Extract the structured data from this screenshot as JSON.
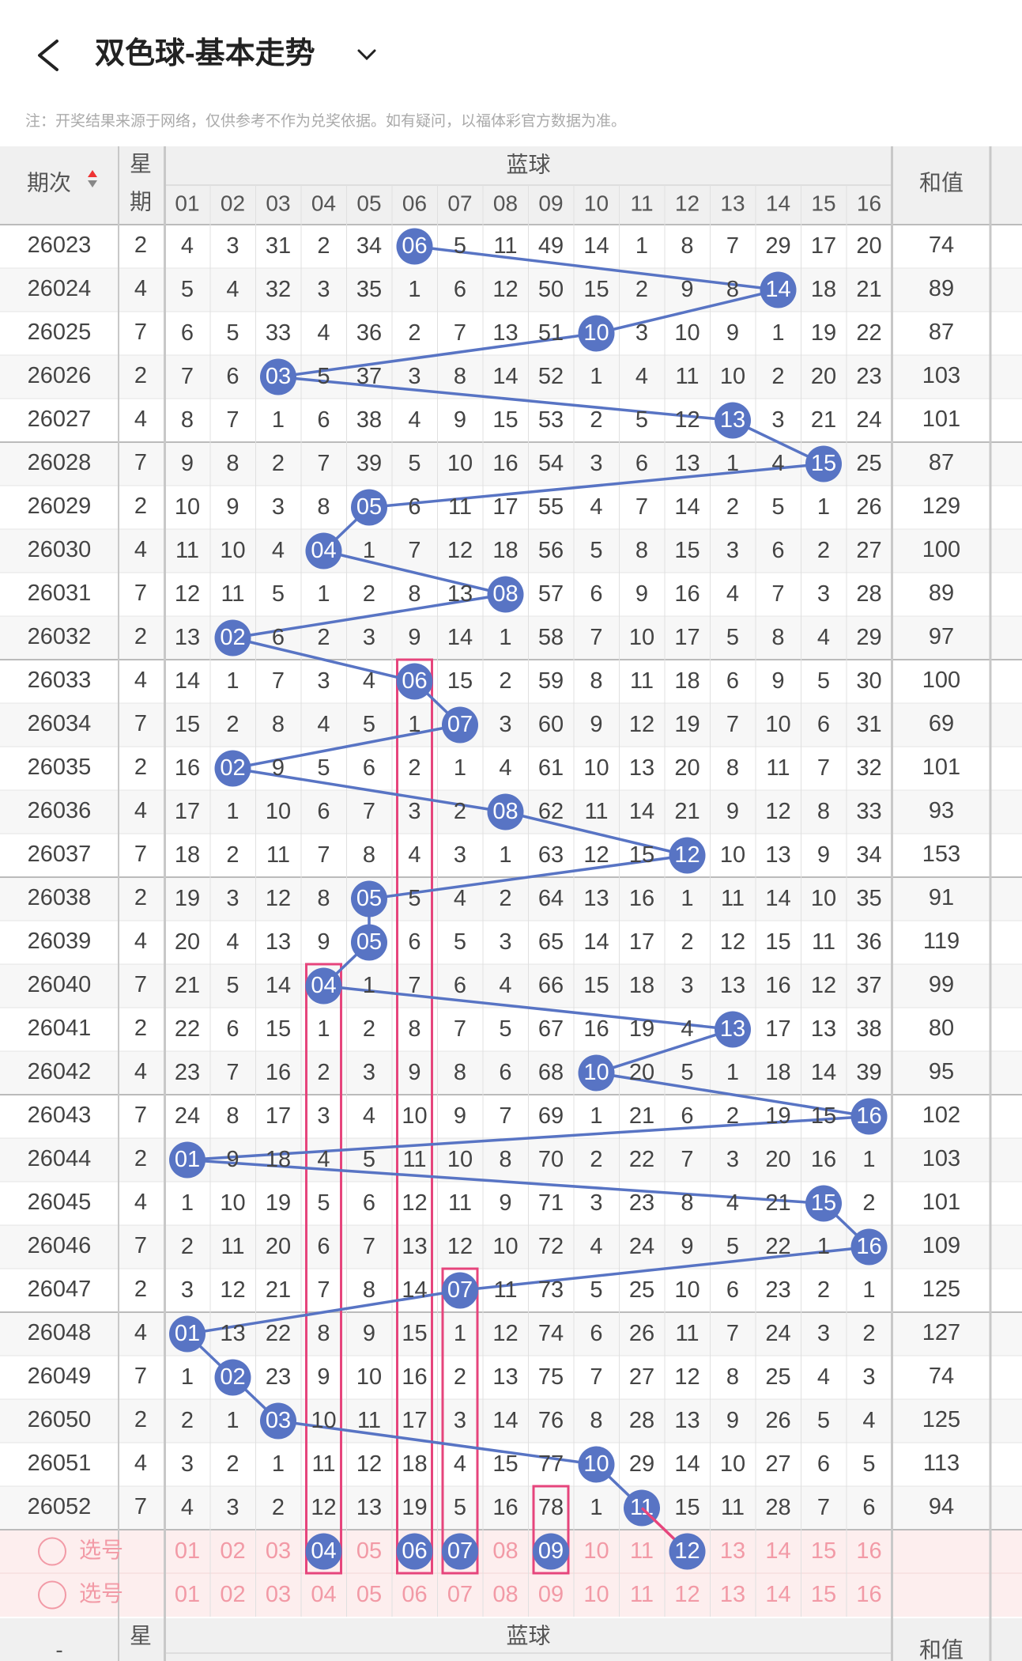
{
  "header": {
    "title": "双色球-基本走势",
    "note": "注：开奖结果来源于网络，仅供参考不作为兑奖依据。如有疑问，以福体彩官方数据为准。"
  },
  "table": {
    "issue_header": "期次",
    "weekday_header": [
      "星",
      "期"
    ],
    "blue_header": "蓝球",
    "sum_header": "和值",
    "columns": [
      "01",
      "02",
      "03",
      "04",
      "05",
      "06",
      "07",
      "08",
      "09",
      "10",
      "11",
      "12",
      "13",
      "14",
      "15",
      "16"
    ],
    "rows": [
      {
        "issue": 26023,
        "weekday": 2,
        "cells": [
          4,
          3,
          31,
          2,
          34,
          "06",
          5,
          11,
          49,
          14,
          1,
          8,
          7,
          29,
          17,
          20
        ],
        "sum": 74
      },
      {
        "issue": 26024,
        "weekday": 4,
        "cells": [
          5,
          4,
          32,
          3,
          35,
          1,
          6,
          12,
          50,
          15,
          2,
          9,
          8,
          "14",
          18,
          21
        ],
        "sum": 89
      },
      {
        "issue": 26025,
        "weekday": 7,
        "cells": [
          6,
          5,
          33,
          4,
          36,
          2,
          7,
          13,
          51,
          "10",
          3,
          10,
          9,
          1,
          19,
          22
        ],
        "sum": 87
      },
      {
        "issue": 26026,
        "weekday": 2,
        "cells": [
          7,
          6,
          "03",
          5,
          37,
          3,
          8,
          14,
          52,
          1,
          4,
          11,
          10,
          2,
          20,
          23
        ],
        "sum": 103
      },
      {
        "issue": 26027,
        "weekday": 4,
        "cells": [
          8,
          7,
          1,
          6,
          38,
          4,
          9,
          15,
          53,
          2,
          5,
          12,
          "13",
          3,
          21,
          24
        ],
        "sum": 101
      },
      {
        "issue": 26028,
        "weekday": 7,
        "cells": [
          9,
          8,
          2,
          7,
          39,
          5,
          10,
          16,
          54,
          3,
          6,
          13,
          1,
          4,
          "15",
          25
        ],
        "sum": 87
      },
      {
        "issue": 26029,
        "weekday": 2,
        "cells": [
          10,
          9,
          3,
          8,
          "05",
          6,
          11,
          17,
          55,
          4,
          7,
          14,
          2,
          5,
          1,
          26
        ],
        "sum": 129
      },
      {
        "issue": 26030,
        "weekday": 4,
        "cells": [
          11,
          10,
          4,
          "04",
          1,
          7,
          12,
          18,
          56,
          5,
          8,
          15,
          3,
          6,
          2,
          27
        ],
        "sum": 100
      },
      {
        "issue": 26031,
        "weekday": 7,
        "cells": [
          12,
          11,
          5,
          1,
          2,
          8,
          13,
          "08",
          57,
          6,
          9,
          16,
          4,
          7,
          3,
          28
        ],
        "sum": 89
      },
      {
        "issue": 26032,
        "weekday": 2,
        "cells": [
          13,
          "02",
          6,
          2,
          3,
          9,
          14,
          1,
          58,
          7,
          10,
          17,
          5,
          8,
          4,
          29
        ],
        "sum": 97
      },
      {
        "issue": 26033,
        "weekday": 4,
        "cells": [
          14,
          1,
          7,
          3,
          4,
          "06",
          15,
          2,
          59,
          8,
          11,
          18,
          6,
          9,
          5,
          30
        ],
        "sum": 100
      },
      {
        "issue": 26034,
        "weekday": 7,
        "cells": [
          15,
          2,
          8,
          4,
          5,
          1,
          "07",
          3,
          60,
          9,
          12,
          19,
          7,
          10,
          6,
          31
        ],
        "sum": 69
      },
      {
        "issue": 26035,
        "weekday": 2,
        "cells": [
          16,
          "02",
          9,
          5,
          6,
          2,
          1,
          4,
          61,
          10,
          13,
          20,
          8,
          11,
          7,
          32
        ],
        "sum": 101
      },
      {
        "issue": 26036,
        "weekday": 4,
        "cells": [
          17,
          1,
          10,
          6,
          7,
          3,
          2,
          "08",
          62,
          11,
          14,
          21,
          9,
          12,
          8,
          33
        ],
        "sum": 93
      },
      {
        "issue": 26037,
        "weekday": 7,
        "cells": [
          18,
          2,
          11,
          7,
          8,
          4,
          3,
          1,
          63,
          12,
          15,
          "12",
          10,
          13,
          9,
          34
        ],
        "sum": 153
      },
      {
        "issue": 26038,
        "weekday": 2,
        "cells": [
          19,
          3,
          12,
          8,
          "05",
          5,
          4,
          2,
          64,
          13,
          16,
          1,
          11,
          14,
          10,
          35
        ],
        "sum": 91
      },
      {
        "issue": 26039,
        "weekday": 4,
        "cells": [
          20,
          4,
          13,
          9,
          "05",
          6,
          5,
          3,
          65,
          14,
          17,
          2,
          12,
          15,
          11,
          36
        ],
        "sum": 119
      },
      {
        "issue": 26040,
        "weekday": 7,
        "cells": [
          21,
          5,
          14,
          "04",
          1,
          7,
          6,
          4,
          66,
          15,
          18,
          3,
          13,
          16,
          12,
          37
        ],
        "sum": 99
      },
      {
        "issue": 26041,
        "weekday": 2,
        "cells": [
          22,
          6,
          15,
          1,
          2,
          8,
          7,
          5,
          67,
          16,
          19,
          4,
          "13",
          17,
          13,
          38
        ],
        "sum": 80
      },
      {
        "issue": 26042,
        "weekday": 4,
        "cells": [
          23,
          7,
          16,
          2,
          3,
          9,
          8,
          6,
          68,
          "10",
          20,
          5,
          1,
          18,
          14,
          39
        ],
        "sum": 95
      },
      {
        "issue": 26043,
        "weekday": 7,
        "cells": [
          24,
          8,
          17,
          3,
          4,
          10,
          9,
          7,
          69,
          1,
          21,
          6,
          2,
          19,
          15,
          "16"
        ],
        "sum": 102
      },
      {
        "issue": 26044,
        "weekday": 2,
        "cells": [
          "01",
          9,
          18,
          4,
          5,
          11,
          10,
          8,
          70,
          2,
          22,
          7,
          3,
          20,
          16,
          1
        ],
        "sum": 103
      },
      {
        "issue": 26045,
        "weekday": 4,
        "cells": [
          1,
          10,
          19,
          5,
          6,
          12,
          11,
          9,
          71,
          3,
          23,
          8,
          4,
          21,
          "15",
          2
        ],
        "sum": 101
      },
      {
        "issue": 26046,
        "weekday": 7,
        "cells": [
          2,
          11,
          20,
          6,
          7,
          13,
          12,
          10,
          72,
          4,
          24,
          9,
          5,
          22,
          1,
          "16"
        ],
        "sum": 109
      },
      {
        "issue": 26047,
        "weekday": 2,
        "cells": [
          3,
          12,
          21,
          7,
          8,
          14,
          "07",
          11,
          73,
          5,
          25,
          10,
          6,
          23,
          2,
          1
        ],
        "sum": 125
      },
      {
        "issue": 26048,
        "weekday": 4,
        "cells": [
          "01",
          13,
          22,
          8,
          9,
          15,
          1,
          12,
          74,
          6,
          26,
          11,
          7,
          24,
          3,
          2
        ],
        "sum": 127
      },
      {
        "issue": 26049,
        "weekday": 7,
        "cells": [
          1,
          "02",
          23,
          9,
          10,
          16,
          2,
          13,
          75,
          7,
          27,
          12,
          8,
          25,
          4,
          3
        ],
        "sum": 74
      },
      {
        "issue": 26050,
        "weekday": 2,
        "cells": [
          2,
          1,
          "03",
          10,
          11,
          17,
          3,
          14,
          76,
          8,
          28,
          13,
          9,
          26,
          5,
          4
        ],
        "sum": 125
      },
      {
        "issue": 26051,
        "weekday": 4,
        "cells": [
          3,
          2,
          1,
          11,
          12,
          18,
          4,
          15,
          77,
          "10",
          29,
          14,
          10,
          27,
          6,
          5
        ],
        "sum": 113
      },
      {
        "issue": 26052,
        "weekday": 7,
        "cells": [
          4,
          3,
          2,
          12,
          13,
          19,
          5,
          16,
          78,
          1,
          "11",
          15,
          11,
          28,
          7,
          6
        ],
        "sum": 94
      }
    ],
    "select_rows": [
      {
        "label": "选号",
        "selected": [
          "04",
          "06",
          "07",
          "09",
          "12"
        ]
      },
      {
        "label": "选号",
        "selected": []
      }
    ],
    "footer_header": {
      "issue": "-",
      "weekday": "星",
      "blue": "蓝球",
      "sum": "和值"
    }
  }
}
